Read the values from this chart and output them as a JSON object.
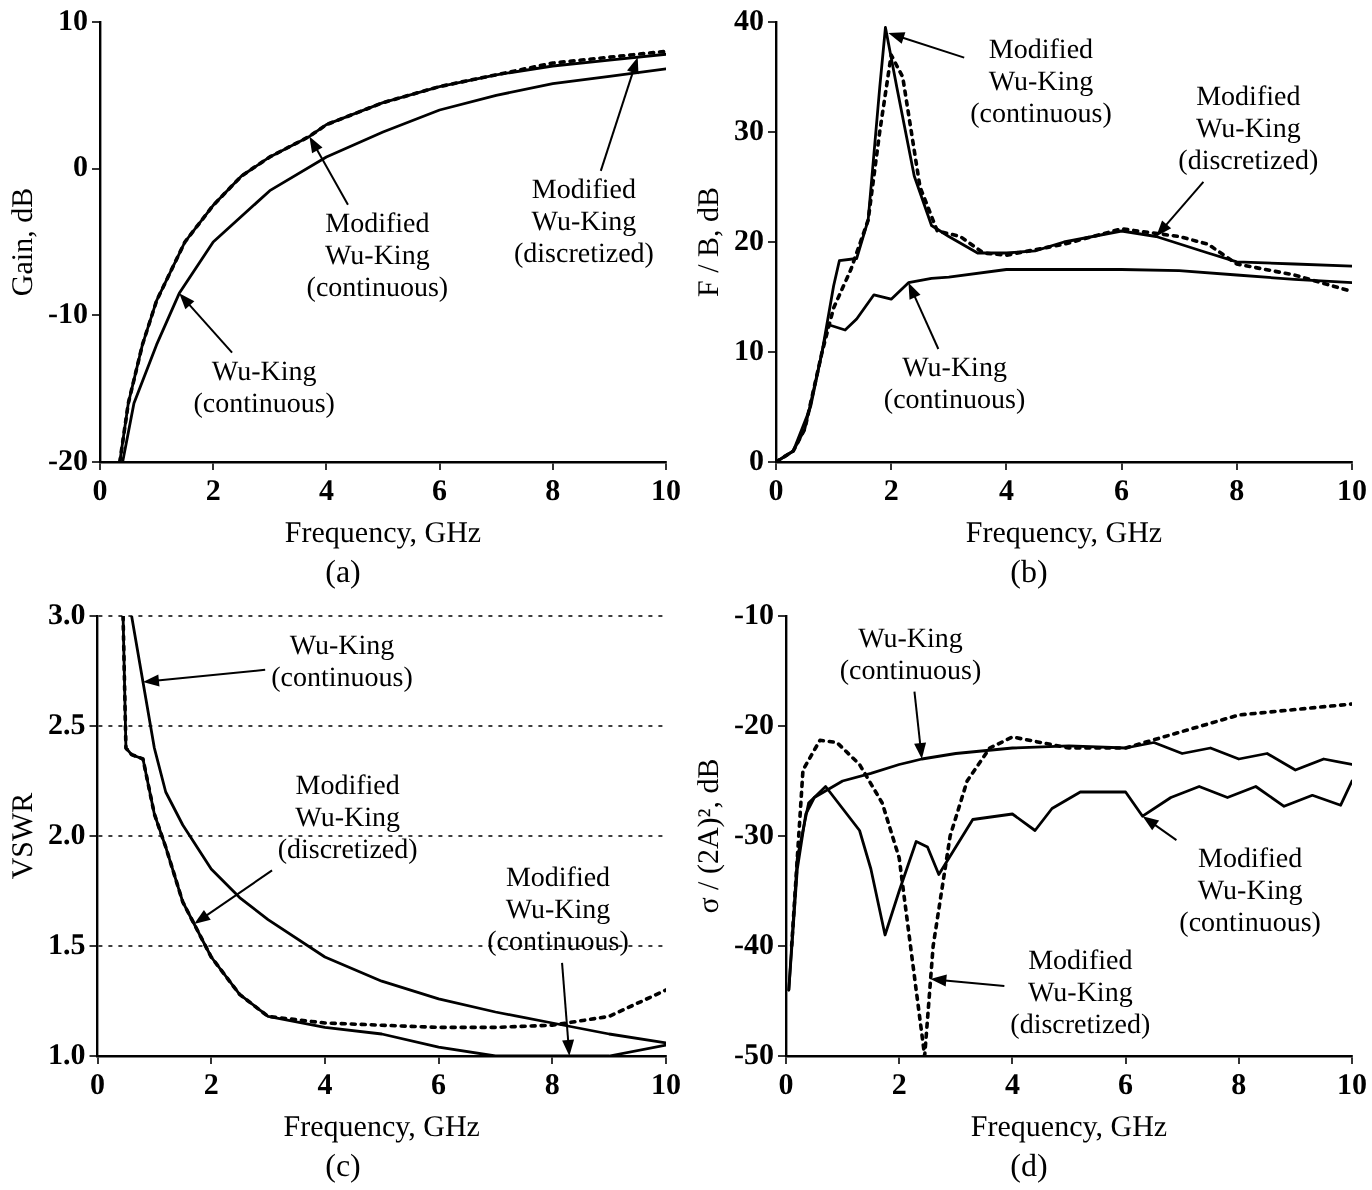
{
  "chart_data": [
    {
      "type": "line",
      "xlabel": "Frequency, GHz",
      "ylabel": "Gain, dB",
      "xlim": [
        0,
        10
      ],
      "xticks": [
        0,
        2,
        4,
        6,
        8,
        10
      ],
      "ylim": [
        -20,
        10
      ],
      "yticks": [
        -20,
        -10,
        0,
        10
      ],
      "series": [
        {
          "type": "line",
          "color": "#000000",
          "line_style": "solid",
          "x": [
            0.4,
            0.6,
            1,
            1.4,
            2,
            3,
            4,
            5,
            6,
            7,
            8,
            9,
            10
          ],
          "values": [
            -20,
            -16,
            -12,
            -8.5,
            -5,
            -1.5,
            0.8,
            2.5,
            4,
            5,
            5.8,
            6.3,
            6.8
          ]
        },
        {
          "type": "line",
          "color": "#000000",
          "line_style": "solid",
          "x": [
            0.35,
            0.5,
            0.75,
            1,
            1.5,
            2,
            2.5,
            3,
            3.7,
            4,
            5,
            6,
            7,
            8,
            9,
            10
          ],
          "values": [
            -20,
            -16,
            -12,
            -9,
            -5,
            -2.5,
            -0.5,
            0.8,
            2.2,
            3,
            4.5,
            5.6,
            6.4,
            7,
            7.4,
            7.8
          ]
        },
        {
          "type": "line",
          "color": "#000000",
          "line_style": "dotted",
          "x": [
            0.35,
            0.5,
            0.75,
            1,
            1.5,
            2,
            2.5,
            3,
            3.7,
            4,
            5,
            6,
            7,
            8,
            9,
            10
          ],
          "values": [
            -20,
            -16,
            -12,
            -9,
            -5,
            -2.5,
            -0.5,
            0.8,
            2.2,
            3,
            4.5,
            5.6,
            6.4,
            7.2,
            7.6,
            8
          ]
        }
      ],
      "annotations": [
        {
          "text": "Modified\nWu-King\n(continuous)",
          "x": 3.7,
          "y": 2.2
        },
        {
          "text": "Wu-King\n(continuous)",
          "x": 1.4,
          "y": -8.5
        },
        {
          "text": "Modified\nWu-King\n(discretized)",
          "x": 9.5,
          "y": 7.6
        },
        "(a)"
      ]
    },
    {
      "type": "line",
      "xlabel": "Frequency, GHz",
      "ylabel": "F / B, dB",
      "xlim": [
        0,
        10
      ],
      "xticks": [
        0,
        2,
        4,
        6,
        8,
        10
      ],
      "ylim": [
        0,
        40
      ],
      "yticks": [
        0,
        10,
        20,
        30,
        40
      ],
      "series": [
        {
          "type": "line",
          "color": "#000000",
          "line_style": "solid",
          "x": [
            0,
            0.3,
            0.6,
            0.9,
            1.2,
            1.4,
            1.7,
            2,
            2.3,
            2.7,
            3,
            4,
            5,
            6,
            7,
            8,
            9,
            10
          ],
          "values": [
            0,
            1,
            5,
            12.5,
            12,
            13,
            15.2,
            14.8,
            16.3,
            16.7,
            16.8,
            17.5,
            17.5,
            17.5,
            17.4,
            17,
            16.6,
            16.3
          ]
        },
        {
          "type": "line",
          "color": "#000000",
          "line_style": "solid",
          "x": [
            0,
            0.3,
            0.5,
            0.8,
            1,
            1.1,
            1.4,
            1.6,
            1.8,
            1.9,
            2.1,
            2.4,
            2.7,
            3,
            3.5,
            4,
            4.5,
            5,
            6,
            6.6,
            7.5,
            8,
            9,
            10
          ],
          "values": [
            0,
            1,
            3,
            10,
            16,
            18.3,
            18.5,
            22,
            34,
            39.5,
            34,
            26,
            21.5,
            20.5,
            19,
            19,
            19.2,
            20,
            21,
            20.5,
            19,
            18.2,
            18,
            17.8
          ]
        },
        {
          "type": "line",
          "color": "#000000",
          "line_style": "dotted",
          "x": [
            0,
            0.3,
            0.5,
            0.8,
            1,
            1.3,
            1.6,
            1.8,
            2,
            2.2,
            2.5,
            2.8,
            3.2,
            3.6,
            4,
            5,
            6,
            7,
            7.5,
            8,
            9,
            10
          ],
          "values": [
            0,
            1,
            3,
            10,
            14,
            17.5,
            22,
            30,
            37,
            35,
            25,
            21,
            20.5,
            19,
            18.8,
            19.8,
            21.2,
            20.5,
            19.8,
            18,
            17,
            15.5
          ]
        }
      ],
      "annotations": [
        {
          "text": "Modified\nWu-King\n(continuous)",
          "x": 1.95,
          "y": 39
        },
        {
          "text": "Modified\nWu-King\n(discretized)",
          "x": 6.6,
          "y": 20.5
        },
        {
          "text": "Wu-King\n(continuous)",
          "x": 2.3,
          "y": 16.3
        },
        "(b)"
      ]
    },
    {
      "type": "line",
      "xlabel": "Frequency, GHz",
      "ylabel": "VSWR",
      "grid": "y",
      "xlim": [
        0,
        10
      ],
      "xticks": [
        0,
        2,
        4,
        6,
        8,
        10
      ],
      "ylim": [
        1,
        3
      ],
      "yticks": [
        {
          "value": 1,
          "label": "1.0"
        },
        1.5,
        {
          "value": 2,
          "label": "2.0"
        },
        2.5,
        {
          "value": 3,
          "label": "3.0"
        }
      ],
      "series": [
        {
          "type": "line",
          "color": "#000000",
          "line_style": "solid",
          "x": [
            0.6,
            0.8,
            1,
            1.2,
            1.5,
            2,
            2.5,
            3,
            4,
            5,
            6,
            7,
            8,
            9,
            10
          ],
          "values": [
            3,
            2.7,
            2.4,
            2.2,
            2.05,
            1.85,
            1.72,
            1.62,
            1.45,
            1.34,
            1.26,
            1.2,
            1.15,
            1.1,
            1.06
          ]
        },
        {
          "type": "line",
          "color": "#000000",
          "line_style": "solid",
          "x": [
            0.45,
            0.5,
            0.6,
            0.8,
            1,
            1.2,
            1.5,
            2,
            2.5,
            3,
            4,
            5,
            6,
            7,
            8,
            9,
            10
          ],
          "values": [
            3,
            2.4,
            2.37,
            2.35,
            2.1,
            1.95,
            1.7,
            1.45,
            1.28,
            1.18,
            1.13,
            1.1,
            1.04,
            1,
            1,
            1,
            1.05
          ]
        },
        {
          "type": "line",
          "color": "#000000",
          "line_style": "dotted",
          "x": [
            0.45,
            0.5,
            0.6,
            0.8,
            1,
            1.2,
            1.5,
            2,
            2.5,
            3,
            4,
            5,
            6,
            7,
            8,
            9,
            10
          ],
          "values": [
            3,
            2.4,
            2.37,
            2.35,
            2.1,
            1.95,
            1.7,
            1.45,
            1.28,
            1.18,
            1.15,
            1.14,
            1.13,
            1.13,
            1.14,
            1.18,
            1.3
          ]
        }
      ],
      "annotations": [
        {
          "text": "Wu-King\n(continuous)",
          "x": 0.8,
          "y": 2.7
        },
        {
          "text": "Modified\nWu-King\n(discretized)",
          "x": 1.7,
          "y": 1.6
        },
        {
          "text": "Modified\nWu-King\n(continuous)",
          "x": 8.3,
          "y": 1
        },
        "(c)"
      ]
    },
    {
      "type": "line",
      "xlabel": "Frequency, GHz",
      "ylabel": "σ / (2A)², dB",
      "xlim": [
        0,
        10
      ],
      "xticks": [
        0,
        2,
        4,
        6,
        8,
        10
      ],
      "ylim": [
        -50,
        -10
      ],
      "yticks": [
        -50,
        -40,
        -30,
        -20,
        -10
      ],
      "series": [
        {
          "type": "line",
          "color": "#000000",
          "line_style": "solid",
          "x": [
            0.05,
            0.2,
            0.35,
            0.5,
            1,
            1.5,
            2,
            2.4,
            3,
            4,
            5,
            6,
            6.5,
            7,
            7.5,
            8,
            8.5,
            9,
            9.5,
            10
          ],
          "values": [
            -44,
            -33,
            -28,
            -26.5,
            -25,
            -24.3,
            -23.5,
            -23,
            -22.5,
            -22,
            -21.8,
            -22,
            -21.5,
            -22.5,
            -22,
            -23,
            -22.5,
            -24,
            -23,
            -23.5
          ]
        },
        {
          "type": "line",
          "color": "#000000",
          "line_style": "solid",
          "x": [
            0.05,
            0.2,
            0.4,
            0.7,
            1,
            1.3,
            1.5,
            1.75,
            2,
            2.3,
            2.5,
            2.7,
            3,
            3.3,
            4,
            4.4,
            4.7,
            5.2,
            6,
            6.3,
            6.8,
            7.3,
            7.8,
            8.3,
            8.8,
            9.3,
            9.8,
            10
          ],
          "values": [
            -44,
            -32,
            -27,
            -25.5,
            -27.5,
            -29.5,
            -33,
            -39,
            -35,
            -30.5,
            -31,
            -33.5,
            -31,
            -28.5,
            -28,
            -29.5,
            -27.5,
            -26,
            -26,
            -28.2,
            -26.5,
            -25.5,
            -26.5,
            -25.5,
            -27.3,
            -26.3,
            -27.2,
            -25
          ]
        },
        {
          "type": "line",
          "color": "#000000",
          "line_style": "dotted",
          "x": [
            0.1,
            0.3,
            0.6,
            0.9,
            1.3,
            1.7,
            2,
            2.2,
            2.45,
            2.6,
            2.9,
            3.2,
            3.6,
            4,
            5,
            6,
            7,
            8,
            9,
            10
          ],
          "values": [
            -40,
            -24,
            -21.3,
            -21.5,
            -23.5,
            -27,
            -32,
            -40,
            -50,
            -40,
            -30,
            -25,
            -22,
            -21,
            -22,
            -22,
            -20.5,
            -19,
            -18.5,
            -18
          ]
        }
      ],
      "annotations": [
        {
          "text": "Wu-King\n(continuous)",
          "x": 2.4,
          "y": -23
        },
        {
          "text": "Modified\nWu-King\n(continuous)",
          "x": 6.3,
          "y": -28.2
        },
        {
          "text": "Modified\nWu-King\n(discretized)",
          "x": 2.55,
          "y": -43
        },
        "(d)"
      ]
    }
  ]
}
